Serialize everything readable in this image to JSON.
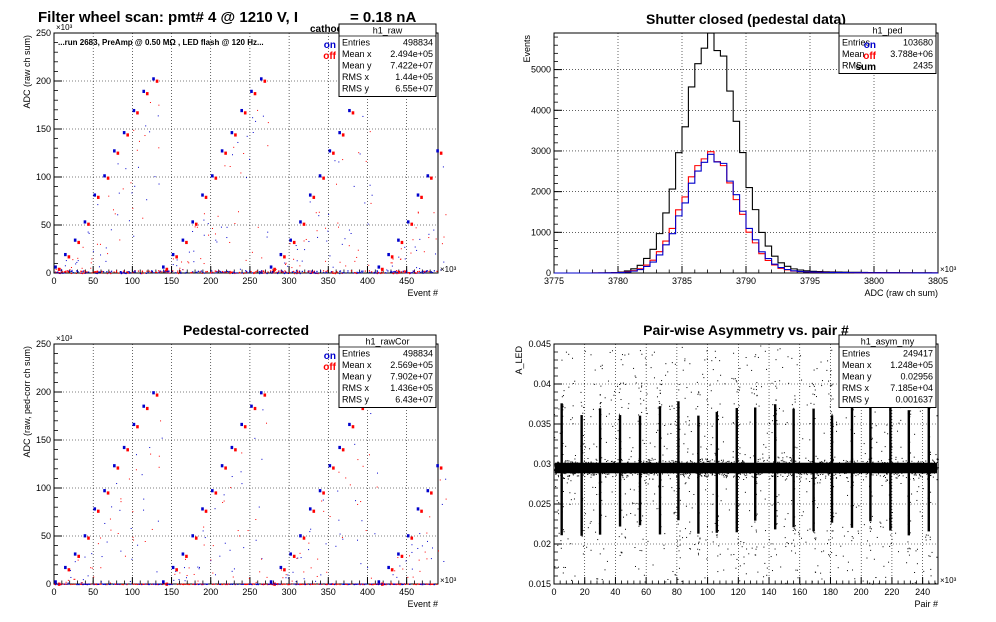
{
  "page": {
    "title_main": "Filter wheel scan: pmt#   4 @  1210 V, I",
    "title_sub": "cathode",
    "title_tail": "= 0.18 nA"
  },
  "chart_data": [
    {
      "id": "raw",
      "type": "scatter",
      "title": "",
      "annotation": "run 2683, PreAmp @ 0.50 MΩ , LED flash @  120 Hz",
      "xlabel": "Event #",
      "ylabel": "ADC (raw ch sum)",
      "xlim": [
        0,
        490
      ],
      "ylim": [
        0,
        250
      ],
      "xticks": [
        0,
        50,
        100,
        150,
        200,
        250,
        300,
        350,
        400,
        450
      ],
      "yticks": [
        0,
        50,
        100,
        150,
        200,
        250
      ],
      "x_exponent": "×10³",
      "y_exponent": "×10³",
      "grid": true,
      "legend": {
        "position": "top-right",
        "entries": [
          {
            "label": "on",
            "color": "#0000cc"
          },
          {
            "label": "off",
            "color": "#ff0000"
          }
        ]
      },
      "stats": {
        "name": "h1_raw",
        "rows": [
          [
            "Entries",
            "498834"
          ],
          [
            "Mean x",
            "2.494e+05"
          ],
          [
            "Mean y",
            "7.422e+07"
          ],
          [
            "RMS x",
            "1.44e+05"
          ],
          [
            "RMS y",
            "6.55e+07"
          ]
        ]
      },
      "levels": [
        5,
        18,
        33,
        52,
        80,
        100,
        126,
        145,
        168,
        188,
        201
      ],
      "step_period": 12.5,
      "series": [
        {
          "name": "on",
          "color": "#0000cc"
        },
        {
          "name": "off",
          "color": "#ff0000"
        }
      ]
    },
    {
      "id": "ped",
      "type": "line",
      "title": "Shutter closed (pedestal data)",
      "xlabel": "ADC (raw ch sum)",
      "ylabel": "Events",
      "xlim": [
        3775,
        3805
      ],
      "ylim": [
        0,
        5900
      ],
      "xticks": [
        3775,
        3780,
        3785,
        3790,
        3795,
        3800,
        3805
      ],
      "yticks": [
        0,
        1000,
        2000,
        3000,
        4000,
        5000
      ],
      "x_exponent": "×10³",
      "grid": true,
      "legend": {
        "position": "top-right",
        "entries": [
          {
            "label": "on",
            "color": "#0000cc"
          },
          {
            "label": "off",
            "color": "#ff0000"
          },
          {
            "label": "sum",
            "color": "#000000"
          }
        ]
      },
      "stats": {
        "name": "h1_ped",
        "rows": [
          [
            "Entries",
            "103680"
          ],
          [
            "Mean",
            "3.788e+06"
          ],
          [
            "RMS",
            "2435"
          ]
        ]
      },
      "hist": {
        "mean": 3787.3,
        "sigma": 2.1,
        "amp_on": 2850,
        "amp_off": 2900,
        "bin_width": 0.5,
        "tail": 1.25
      },
      "series": [
        {
          "name": "on",
          "color": "#0000cc"
        },
        {
          "name": "off",
          "color": "#ff0000"
        },
        {
          "name": "sum",
          "color": "#000000"
        }
      ]
    },
    {
      "id": "rawCor",
      "type": "scatter",
      "title": "Pedestal-corrected",
      "xlabel": "Event #",
      "ylabel": "ADC (raw, ped-corr ch sum)",
      "xlim": [
        0,
        490
      ],
      "ylim": [
        0,
        250
      ],
      "xticks": [
        0,
        50,
        100,
        150,
        200,
        250,
        300,
        350,
        400,
        450
      ],
      "yticks": [
        0,
        50,
        100,
        150,
        200,
        250
      ],
      "x_exponent": "×10³",
      "y_exponent": "×10³",
      "grid": true,
      "legend": {
        "position": "top-right",
        "entries": [
          {
            "label": "on",
            "color": "#0000cc"
          },
          {
            "label": "off",
            "color": "#ff0000"
          }
        ]
      },
      "stats": {
        "name": "h1_rawCor",
        "rows": [
          [
            "Entries",
            "498834"
          ],
          [
            "Mean x",
            "2.569e+05"
          ],
          [
            "Mean y",
            "7.902e+07"
          ],
          [
            "RMS x",
            "1.436e+05"
          ],
          [
            "RMS y",
            "6.43e+07"
          ]
        ]
      },
      "levels": [
        1,
        16,
        30,
        49,
        77,
        96,
        122,
        141,
        165,
        184,
        198
      ],
      "step_period": 12.5,
      "series": [
        {
          "name": "on",
          "color": "#0000cc"
        },
        {
          "name": "off",
          "color": "#ff0000"
        }
      ]
    },
    {
      "id": "asym",
      "type": "scatter",
      "title": "Pair-wise Asymmetry vs. pair #",
      "xlabel": "Pair #",
      "ylabel": "A_LED",
      "xlim": [
        0,
        250
      ],
      "ylim": [
        0.015,
        0.045
      ],
      "xticks": [
        0,
        20,
        40,
        60,
        80,
        100,
        120,
        140,
        160,
        180,
        200,
        220,
        240
      ],
      "yticks": [
        0.015,
        0.02,
        0.025,
        0.03,
        0.035,
        0.04,
        0.045
      ],
      "x_exponent": "×10³",
      "grid": true,
      "stats": {
        "name": "h1_asym_my",
        "rows": [
          [
            "Entries",
            "249417"
          ],
          [
            "Mean x",
            "1.248e+05"
          ],
          [
            "Mean y",
            "0.02956"
          ],
          [
            "RMS x",
            "7.185e+04"
          ],
          [
            "RMS y",
            "0.001637"
          ]
        ]
      },
      "band": {
        "center": 0.0295,
        "half_width": 0.0012
      },
      "spike_positions": [
        5,
        18,
        30,
        43,
        56,
        69,
        81,
        94,
        106,
        119,
        131,
        144,
        156,
        169,
        181,
        194,
        206,
        219,
        231,
        244
      ],
      "series": [
        {
          "name": "",
          "color": "#000000"
        }
      ]
    }
  ]
}
